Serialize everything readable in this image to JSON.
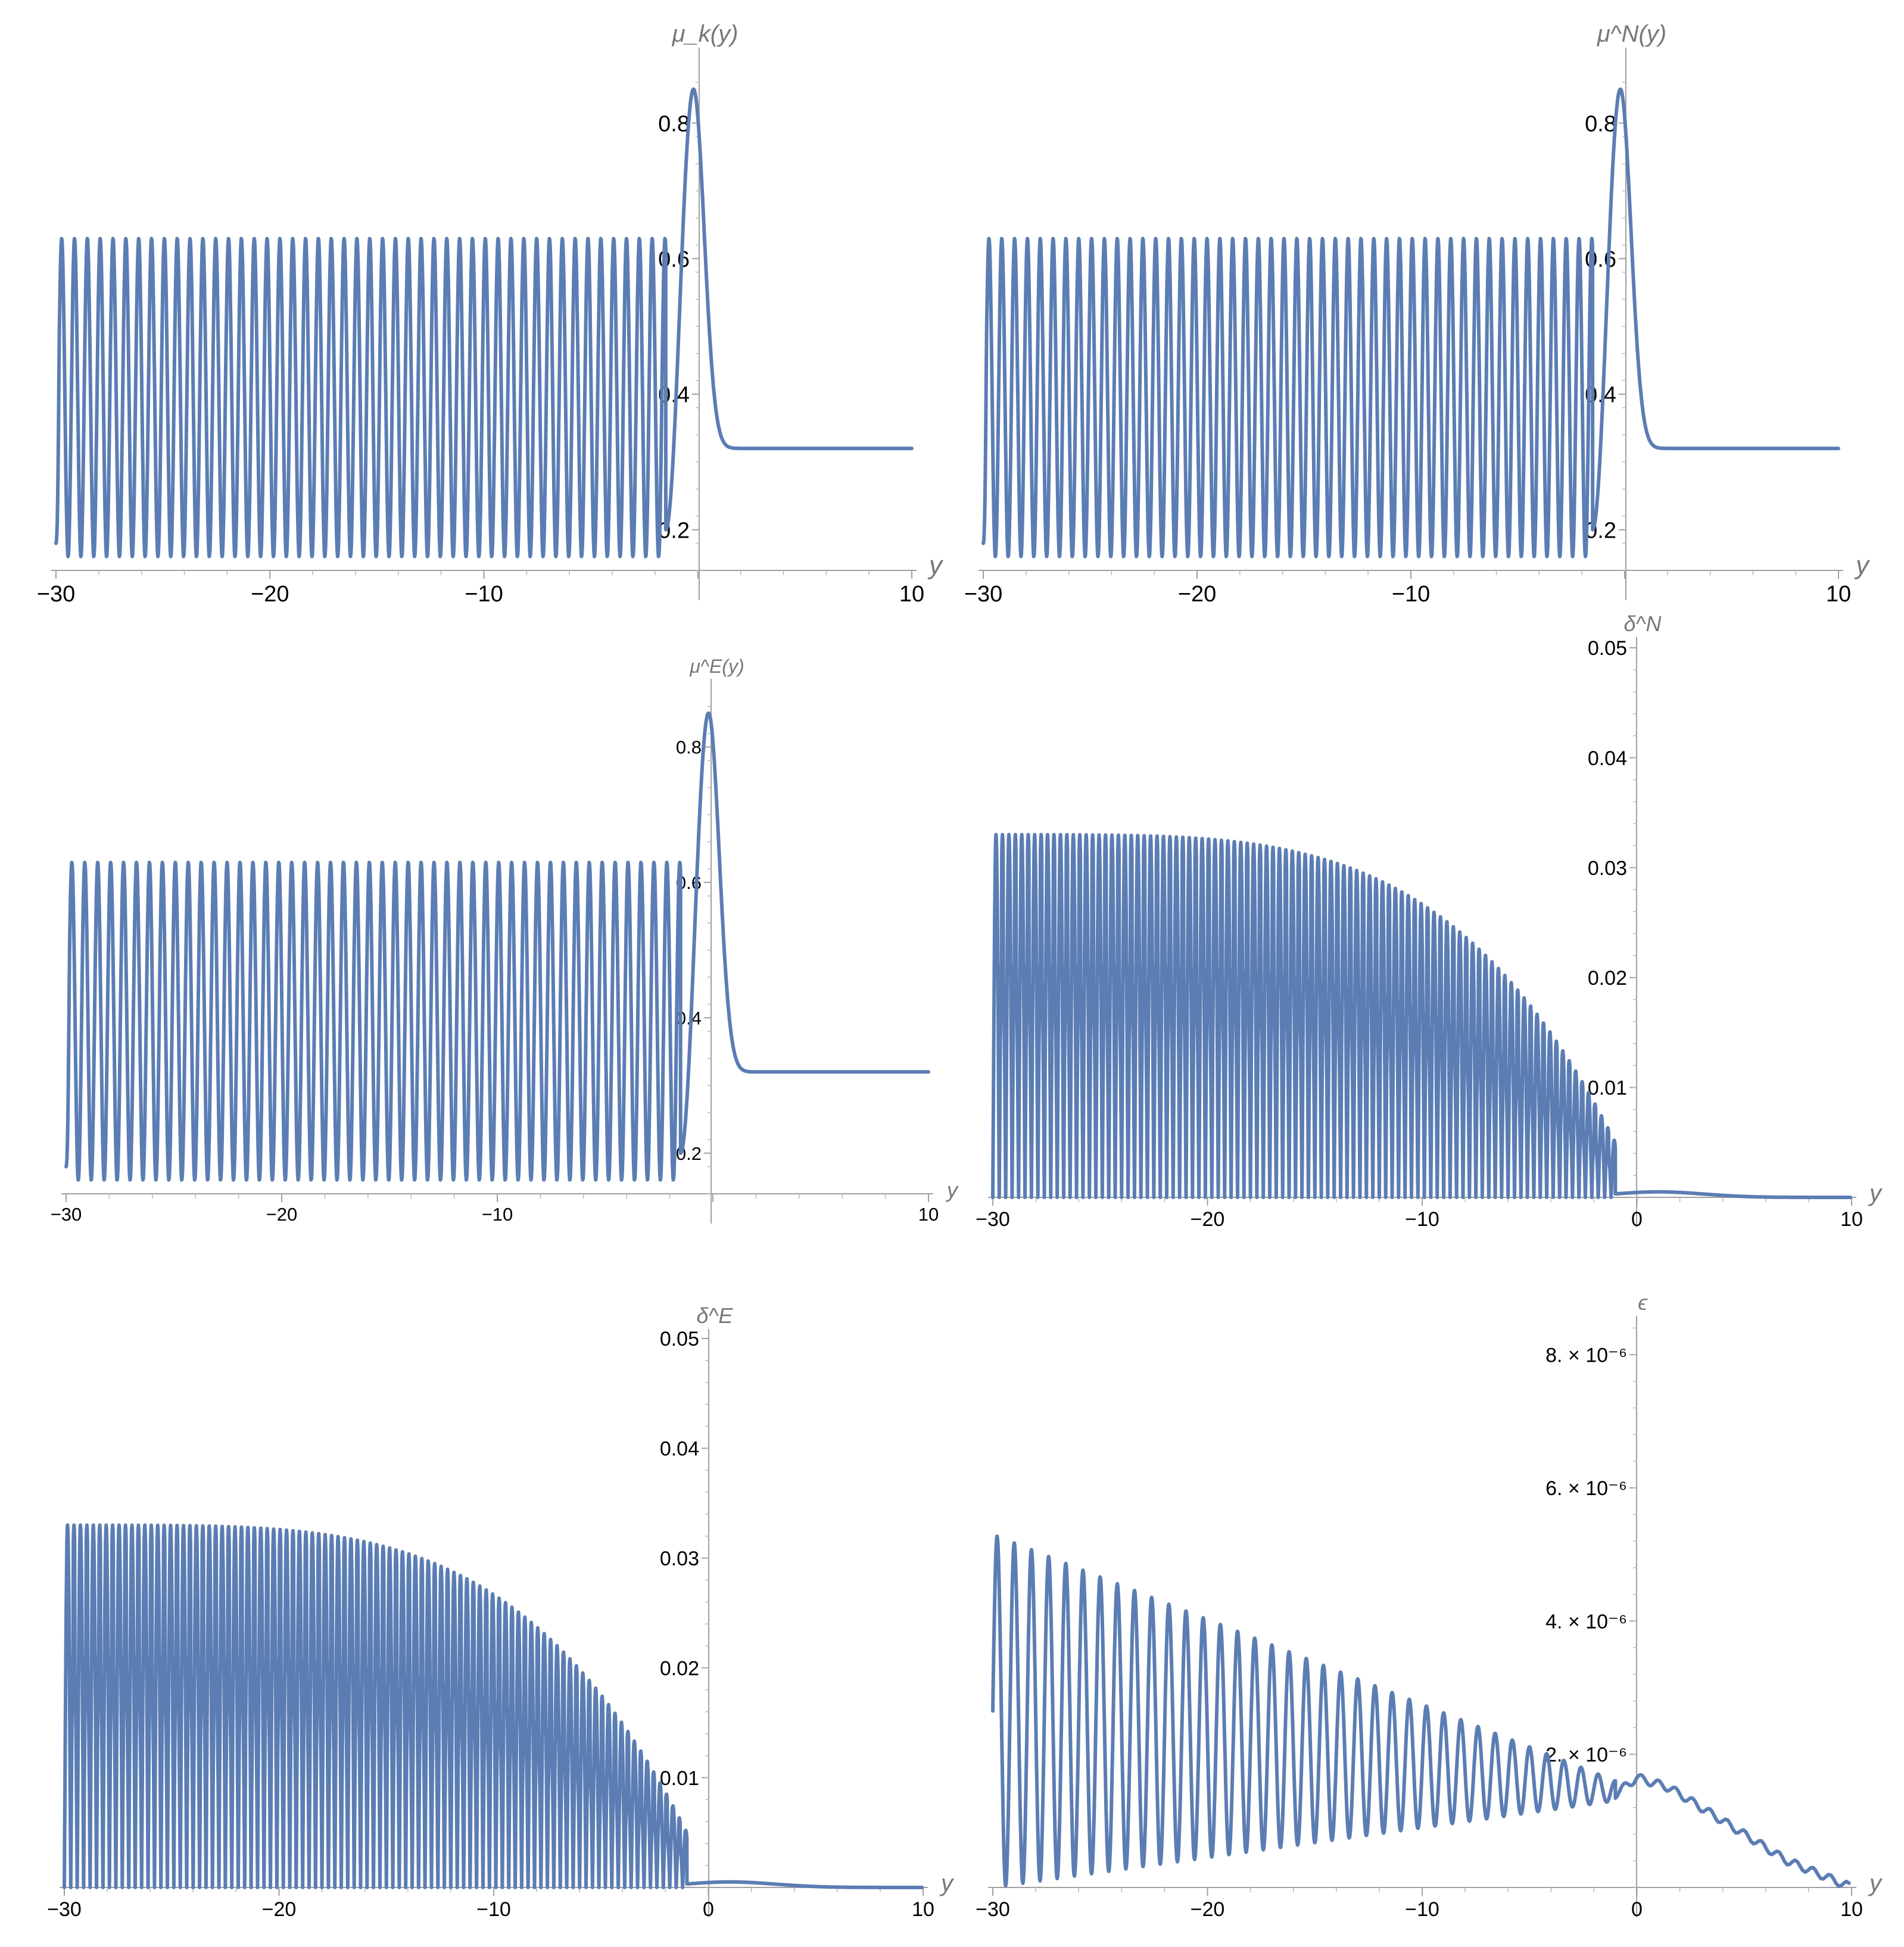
{
  "style": {
    "series_color": "#5b7db4",
    "axis_color": "#a0a0a0",
    "label_color": "#777777"
  },
  "chart_data": [
    {
      "id": "mu-k",
      "type": "line",
      "ylabel": "μ_k(y)",
      "xlabel": "y",
      "x_ticks": [
        "−30",
        "−20",
        "−10",
        "10"
      ],
      "y_ticks": [
        "0.2",
        "0.4",
        "0.6",
        "0.8"
      ],
      "xlim": [
        -30,
        10
      ],
      "ylim": [
        0.14,
        0.87
      ],
      "series": [
        {
          "kind": "osc_peak",
          "x_range": [
            -30,
            10
          ],
          "osc_end": -1.5,
          "period": 0.6,
          "osc_min": 0.16,
          "osc_max": 0.63,
          "osc_start": 0.18,
          "peak_x": -0.2,
          "peak_y": 0.85,
          "plateau": 0.32,
          "decay": 0.7
        }
      ]
    },
    {
      "id": "mu-n",
      "type": "line",
      "ylabel": "μ^N(y)",
      "xlabel": "y",
      "x_ticks": [
        "−30",
        "−20",
        "−10",
        "10"
      ],
      "y_ticks": [
        "0.2",
        "0.4",
        "0.6",
        "0.8"
      ],
      "xlim": [
        -30,
        10
      ],
      "ylim": [
        0.14,
        0.87
      ],
      "series": [
        {
          "kind": "osc_peak",
          "x_range": [
            -30,
            10
          ],
          "osc_end": -1.5,
          "period": 0.6,
          "osc_min": 0.16,
          "osc_max": 0.63,
          "osc_start": 0.18,
          "peak_x": -0.2,
          "peak_y": 0.85,
          "plateau": 0.32,
          "decay": 0.7
        }
      ]
    },
    {
      "id": "mu-e",
      "type": "line",
      "ylabel": "μ^E(y)",
      "xlabel": "y",
      "x_ticks": [
        "−30",
        "−20",
        "−10",
        "10"
      ],
      "y_ticks": [
        "0.2",
        "0.4",
        "0.6",
        "0.8"
      ],
      "xlim": [
        -30,
        10
      ],
      "ylim": [
        0.14,
        0.87
      ],
      "series": [
        {
          "kind": "osc_peak",
          "x_range": [
            -30,
            10
          ],
          "osc_end": -1.5,
          "period": 0.6,
          "osc_min": 0.16,
          "osc_max": 0.63,
          "osc_start": 0.18,
          "peak_x": -0.2,
          "peak_y": 0.85,
          "plateau": 0.32,
          "decay": 0.7
        }
      ]
    },
    {
      "id": "delta-n",
      "type": "line",
      "ylabel": "δ^N",
      "xlabel": "y",
      "x_ticks": [
        "−30",
        "−20",
        "−10",
        "0",
        "10"
      ],
      "y_ticks": [
        "0.01",
        "0.02",
        "0.03",
        "0.04",
        "0.05"
      ],
      "xlim": [
        -30,
        10
      ],
      "ylim": [
        0,
        0.05
      ],
      "series": [
        {
          "kind": "osc_decay",
          "x_range": [
            -30,
            10
          ],
          "osc_end": -1.0,
          "period": 0.6,
          "amp_max": 0.033,
          "amp_min_at_end": 0.005,
          "small_bump_x": 1.0,
          "small_bump_y": 0.0005
        }
      ]
    },
    {
      "id": "delta-e",
      "type": "line",
      "ylabel": "δ^E",
      "xlabel": "y",
      "x_ticks": [
        "−30",
        "−20",
        "−10",
        "0",
        "10"
      ],
      "y_ticks": [
        "0.01",
        "0.02",
        "0.03",
        "0.04",
        "0.05"
      ],
      "xlim": [
        -30,
        10
      ],
      "ylim": [
        0,
        0.05
      ],
      "series": [
        {
          "kind": "osc_decay",
          "x_range": [
            -30,
            10
          ],
          "osc_end": -1.0,
          "period": 0.6,
          "amp_max": 0.033,
          "amp_min_at_end": 0.005,
          "small_bump_x": 1.0,
          "small_bump_y": 0.0005
        }
      ]
    },
    {
      "id": "epsilon",
      "type": "line",
      "ylabel": "ϵ",
      "xlabel": "y",
      "x_ticks": [
        "−30",
        "−20",
        "−10",
        "0",
        "10"
      ],
      "y_ticks": [
        "2. × 10⁻⁶",
        "4. × 10⁻⁶",
        "6. × 10⁻⁶",
        "8. × 10⁻⁶"
      ],
      "xlim": [
        -30,
        10
      ],
      "ylim": [
        0,
        8.6e-06
      ],
      "series": [
        {
          "kind": "osc_linear",
          "x_range": [
            -30,
            10
          ],
          "osc_end": -1.0,
          "period": 0.8,
          "start_max": 5.3e-06,
          "end_max": 1.6e-06,
          "start_min": 0.0,
          "end_min": 1.3e-06,
          "tail_points": [
            [
              -1.0,
              1.4e-06
            ],
            [
              0,
              1.65e-06
            ],
            [
              1.5,
              1.5e-06
            ],
            [
              4,
              1e-06
            ],
            [
              7,
              4e-07
            ],
            [
              10,
              0
            ]
          ]
        }
      ]
    }
  ]
}
